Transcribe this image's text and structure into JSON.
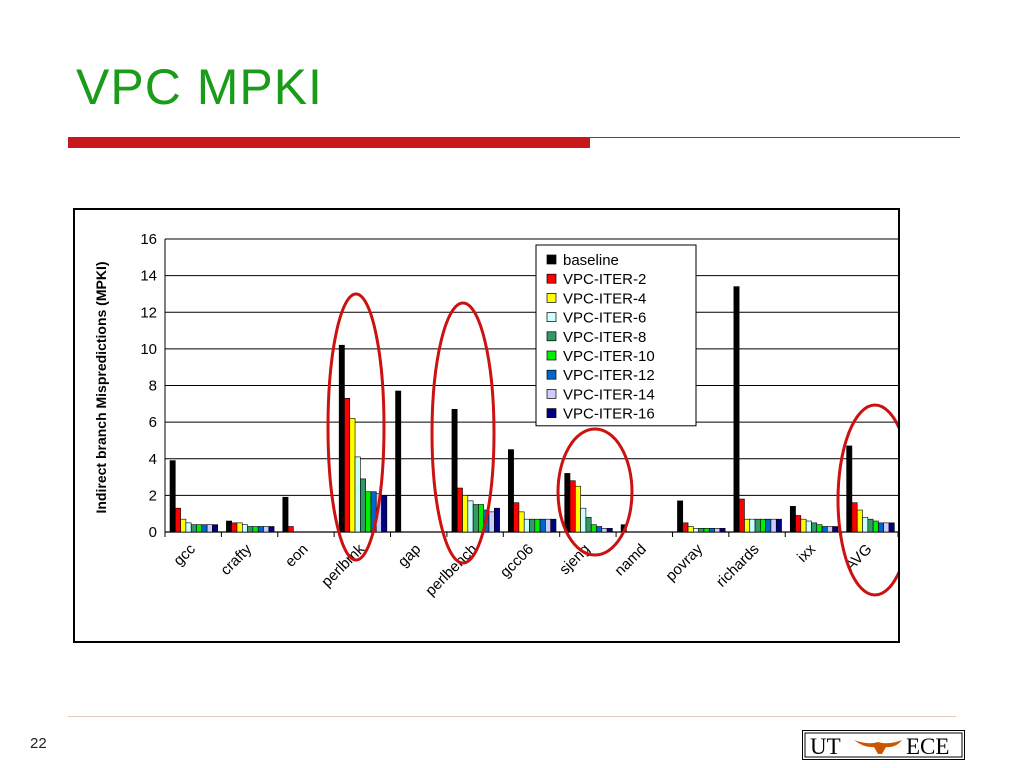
{
  "slide": {
    "title": "VPC MPKI",
    "page_number": "22",
    "logo": {
      "left_text": "UT",
      "right_text": "ECE"
    }
  },
  "colors": {
    "title": "#1a9c1a",
    "rule": "#c8181e",
    "highlight_circle": "#cc1111"
  },
  "highlight_circles_around": [
    "perlbmk",
    "perlbench",
    "sjeng",
    "AVG"
  ],
  "chart_data": {
    "type": "bar",
    "title": "",
    "xlabel": "",
    "ylabel": "Indirect branch Mispredictions (MPKI)",
    "ylim": [
      0,
      16
    ],
    "yticks": [
      0,
      2,
      4,
      6,
      8,
      10,
      12,
      14,
      16
    ],
    "grid": true,
    "legend_position": "top-right",
    "categories": [
      "gcc",
      "crafty",
      "eon",
      "perlbmk",
      "gap",
      "perlbench",
      "gcc06",
      "sjeng",
      "namd",
      "povray",
      "richards",
      "ixx",
      "AVG"
    ],
    "series": [
      {
        "name": "baseline",
        "color": "#000000",
        "values": [
          3.9,
          0.6,
          1.9,
          10.2,
          7.7,
          6.7,
          4.5,
          3.2,
          0.4,
          1.7,
          13.4,
          1.4,
          4.7
        ]
      },
      {
        "name": "VPC-ITER-2",
        "color": "#ff0000",
        "values": [
          1.3,
          0.5,
          0.3,
          7.3,
          0,
          2.4,
          1.6,
          2.8,
          0,
          0.5,
          1.8,
          0.9,
          1.6
        ]
      },
      {
        "name": "VPC-ITER-4",
        "color": "#ffff00",
        "values": [
          0.7,
          0.5,
          0,
          6.2,
          0,
          2.0,
          1.1,
          2.5,
          0,
          0.3,
          0.7,
          0.7,
          1.2
        ]
      },
      {
        "name": "VPC-ITER-6",
        "color": "#ccffff",
        "values": [
          0.5,
          0.4,
          0,
          4.1,
          0,
          1.7,
          0.7,
          1.3,
          0,
          0.2,
          0.7,
          0.6,
          0.8
        ]
      },
      {
        "name": "VPC-ITER-8",
        "color": "#339966",
        "values": [
          0.4,
          0.3,
          0,
          2.9,
          0,
          1.5,
          0.7,
          0.8,
          0,
          0.2,
          0.7,
          0.5,
          0.7
        ]
      },
      {
        "name": "VPC-ITER-10",
        "color": "#00ee00",
        "values": [
          0.4,
          0.3,
          0,
          2.2,
          0,
          1.5,
          0.7,
          0.4,
          0,
          0.2,
          0.7,
          0.4,
          0.6
        ]
      },
      {
        "name": "VPC-ITER-12",
        "color": "#0066cc",
        "values": [
          0.4,
          0.3,
          0,
          2.2,
          0,
          1.2,
          0.7,
          0.3,
          0,
          0.2,
          0.7,
          0.3,
          0.5
        ]
      },
      {
        "name": "VPC-ITER-14",
        "color": "#ccccff",
        "values": [
          0.4,
          0.3,
          0,
          2.1,
          0,
          1.1,
          0.7,
          0.2,
          0,
          0.2,
          0.7,
          0.3,
          0.5
        ]
      },
      {
        "name": "VPC-ITER-16",
        "color": "#000080",
        "values": [
          0.4,
          0.3,
          0,
          2.0,
          0,
          1.3,
          0.7,
          0.2,
          0,
          0.2,
          0.7,
          0.3,
          0.5
        ]
      }
    ]
  }
}
